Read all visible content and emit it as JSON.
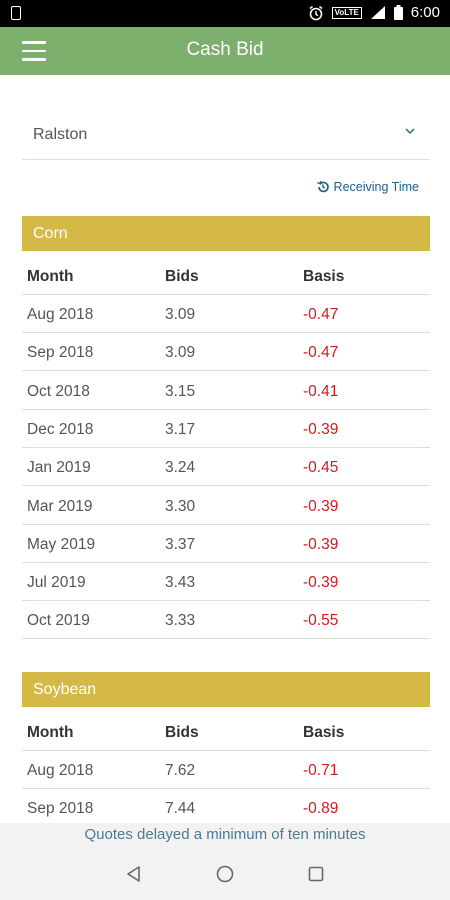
{
  "status": {
    "time": "6:00",
    "volte": "VoLTE"
  },
  "appbar": {
    "title": "Cash Bid"
  },
  "location_select": {
    "value": "Ralston"
  },
  "receiving_time": {
    "label": "Receiving Time"
  },
  "headers": {
    "month": "Month",
    "bids": "Bids",
    "basis": "Basis"
  },
  "corn": {
    "title": "Corn",
    "rows": [
      {
        "month": "Aug 2018",
        "bids": "3.09",
        "basis": "-0.47"
      },
      {
        "month": "Sep 2018",
        "bids": "3.09",
        "basis": "-0.47"
      },
      {
        "month": "Oct 2018",
        "bids": "3.15",
        "basis": "-0.41"
      },
      {
        "month": "Dec 2018",
        "bids": "3.17",
        "basis": "-0.39"
      },
      {
        "month": "Jan 2019",
        "bids": "3.24",
        "basis": "-0.45"
      },
      {
        "month": "Mar 2019",
        "bids": "3.30",
        "basis": "-0.39"
      },
      {
        "month": "May 2019",
        "bids": "3.37",
        "basis": "-0.39"
      },
      {
        "month": "Jul 2019",
        "bids": "3.43",
        "basis": "-0.39"
      },
      {
        "month": "Oct 2019",
        "bids": "3.33",
        "basis": "-0.55"
      }
    ]
  },
  "soybean": {
    "title": "Soybean",
    "rows": [
      {
        "month": "Aug 2018",
        "bids": "7.62",
        "basis": "-0.71"
      },
      {
        "month": "Sep 2018",
        "bids": "7.44",
        "basis": "-0.89"
      }
    ]
  },
  "footer": {
    "notice": "Quotes delayed a minimum of ten minutes"
  },
  "colors": {
    "appbar": "#7cae6c",
    "section": "#d5b947",
    "negative": "#cc1d1d",
    "link": "#1d5f8a"
  }
}
